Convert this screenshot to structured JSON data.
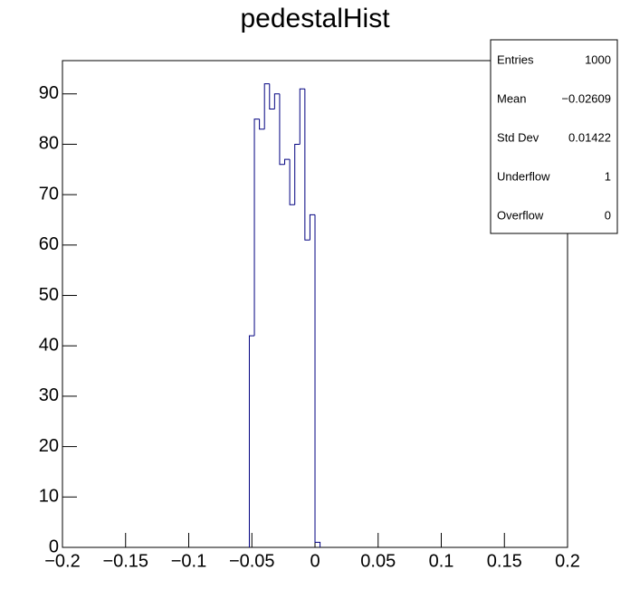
{
  "chart_data": {
    "type": "histogram",
    "title": "pedestalHist",
    "bins": [
      -0.052,
      -0.048,
      -0.044,
      -0.04,
      -0.036,
      -0.032,
      -0.028,
      -0.024,
      -0.02,
      -0.016,
      -0.012,
      -0.008,
      -0.004,
      0,
      0.004
    ],
    "values": [
      42,
      85,
      83,
      92,
      87,
      90,
      76,
      77,
      68,
      80,
      91,
      61,
      66,
      1
    ],
    "color": "#000080",
    "xlim": [
      -0.2,
      0.2
    ],
    "xticks": [
      {
        "value": -0.2,
        "label": "−0.2"
      },
      {
        "value": -0.15,
        "label": "−0.15"
      },
      {
        "value": -0.1,
        "label": "−0.1"
      },
      {
        "value": -0.05,
        "label": "−0.05"
      },
      0,
      0.05,
      0.1,
      0.15,
      0.2
    ],
    "ylim": [
      0,
      96.6
    ],
    "yticks": [
      0,
      10,
      20,
      30,
      40,
      50,
      60,
      70,
      80,
      90
    ],
    "stats": [
      [
        "Entries",
        "1000"
      ],
      [
        "Mean",
        "−0.02609"
      ],
      [
        "Std Dev",
        "0.01422"
      ],
      [
        "Underflow",
        "1"
      ],
      [
        "Overflow",
        "0"
      ]
    ]
  }
}
